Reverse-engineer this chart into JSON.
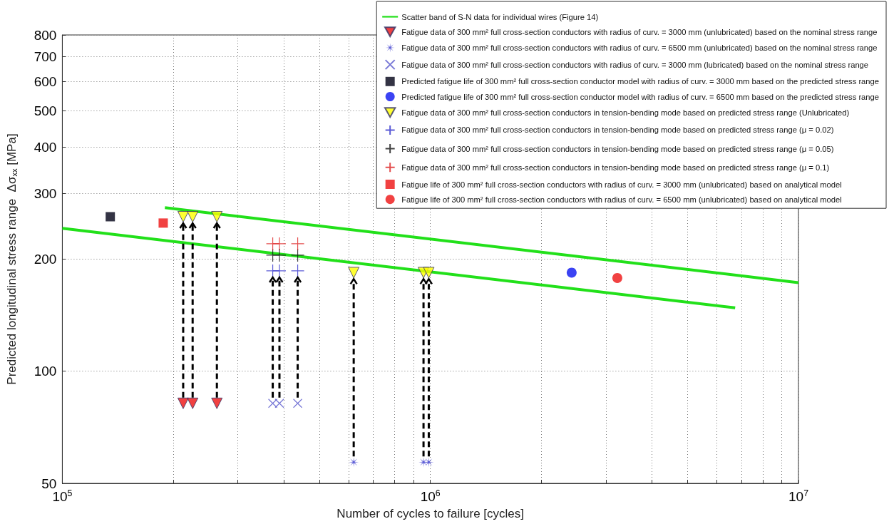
{
  "chart_data": {
    "type": "scatter",
    "xlabel": "Number of cycles to failure [cycles]",
    "ylabel": "Predicted longitudinal stress range  Δσ$_{xx}$ [MPa]",
    "log": "xy",
    "grid": true,
    "legend": "top right",
    "xlim": [
      100000,
      10000000
    ],
    "xticks": [
      {
        "value": 100000,
        "label": "10$^{5}$"
      },
      {
        "value": 200000,
        "label": null
      },
      {
        "value": 300000,
        "label": null
      },
      {
        "value": 400000,
        "label": null
      },
      {
        "value": 500000,
        "label": null
      },
      {
        "value": 600000,
        "label": null
      },
      {
        "value": 700000,
        "label": null
      },
      {
        "value": 800000,
        "label": null
      },
      {
        "value": 900000,
        "label": null
      },
      {
        "value": 1000000,
        "label": "10$^{6}$"
      },
      {
        "value": 2000000,
        "label": null
      },
      {
        "value": 3000000,
        "label": null
      },
      {
        "value": 4000000,
        "label": null
      },
      {
        "value": 5000000,
        "label": null
      },
      {
        "value": 6000000,
        "label": null
      },
      {
        "value": 7000000,
        "label": null
      },
      {
        "value": 8000000,
        "label": null
      },
      {
        "value": 9000000,
        "label": null
      },
      {
        "value": 10000000,
        "label": "10$^{7}$"
      }
    ],
    "ylim": [
      50,
      800
    ],
    "yticks": [
      50,
      100,
      200,
      300,
      400,
      500,
      600,
      700,
      800
    ],
    "series": [
      {
        "type": "line",
        "name": "Scatter band of S-N data for individual wires (Figure 14)",
        "color": "#22e01a",
        "marker": "none",
        "x": [
          190000,
          10000000
        ],
        "values": [
          275,
          173
        ]
      },
      {
        "type": "line",
        "color": "#22e01a",
        "marker": "none",
        "x": [
          100000,
          6730000
        ],
        "values": [
          242,
          148
        ]
      },
      {
        "name": "Fatigue data of 300 mm² full cross-section conductors with radius of curv. = 3000 mm (unlubricated) based on the nominal stress range",
        "color": "#ee1111",
        "marker": "triangle",
        "x": [
          213000,
          226000,
          263000
        ],
        "values": [
          82,
          82,
          82
        ]
      },
      {
        "name": "Fatigue data of 300 mm² full cross-section conductors with radius of curv. = 6500 mm (unlubricated) based on the nominal stress range",
        "color": "#3333cc",
        "marker": "star",
        "x": [
          619000,
          958000,
          990000
        ],
        "values": [
          57,
          57,
          57
        ]
      },
      {
        "name": "Fatigue data of 300 mm² full cross-section conductors with radius of curv. = 3000 mm (lubricated) based on the nominal stress range",
        "color": "#5555cc",
        "marker": "cross",
        "x": [
          373000,
          389000,
          436000
        ],
        "values": [
          82,
          82,
          82
        ]
      },
      {
        "name": "Predicted fatigue life of 300 mm² full cross-section conductor model with radius of curv. = 3000 mm based on the predicted stress range",
        "color": "#000015",
        "marker": "square",
        "x": [
          135000
        ],
        "values": [
          260
        ]
      },
      {
        "name": "Predicted fatigue life of 300 mm² full cross-section conductor model with radius of curv. = 6500 mm based on the predicted stress range",
        "color": "#0a14f0",
        "marker": "circle",
        "x": [
          2420000
        ],
        "values": [
          184
        ]
      },
      {
        "name": "Fatigue data of 300 mm² full cross-section conductors in tension-bending mode based on predicted stress range (Unlubricated)",
        "color": "#ffff00",
        "marker": "triangle",
        "x": [
          213000,
          226000,
          263000,
          619000,
          958000,
          990000
        ],
        "values": [
          260,
          260,
          260,
          184,
          184,
          184
        ]
      },
      {
        "name": "Fatigue data of 300 mm² full cross-section conductors in tension-bending mode based on predicted stress range (μ = 0.02)",
        "color": "#3333cc",
        "marker": "plus",
        "x": [
          373000,
          389000,
          436000
        ],
        "values": [
          186,
          186,
          186
        ]
      },
      {
        "name": "Fatigue data of 300 mm² full cross-section conductors in tension-bending mode based on predicted stress range (μ = 0.05)",
        "color": "#111111",
        "marker": "plus",
        "x": [
          373000,
          389000,
          436000
        ],
        "values": [
          205,
          205,
          205
        ]
      },
      {
        "name": "Fatigue data of 300 mm² full cross-section conductors in tension-bending mode based on predicted stress range (μ = 0.1)",
        "color": "#dd2222",
        "marker": "plus",
        "x": [
          373000,
          389000,
          436000
        ],
        "values": [
          220,
          220,
          220
        ]
      },
      {
        "name": "Fatigue life of 300 mm² full cross-section conductors with radius of curv. = 3000 mm (unlubricated) based on analytical model",
        "color": "#ee1111",
        "marker": "square",
        "x": [
          188000
        ],
        "values": [
          250
        ]
      },
      {
        "name": "Fatigue life of 300 mm² full cross-section conductors with radius of curv. = 6500 mm (unlubricated) based on analytical model",
        "color": "#ee1111",
        "marker": "circle",
        "x": [
          3220000
        ],
        "values": [
          178
        ]
      }
    ]
  }
}
